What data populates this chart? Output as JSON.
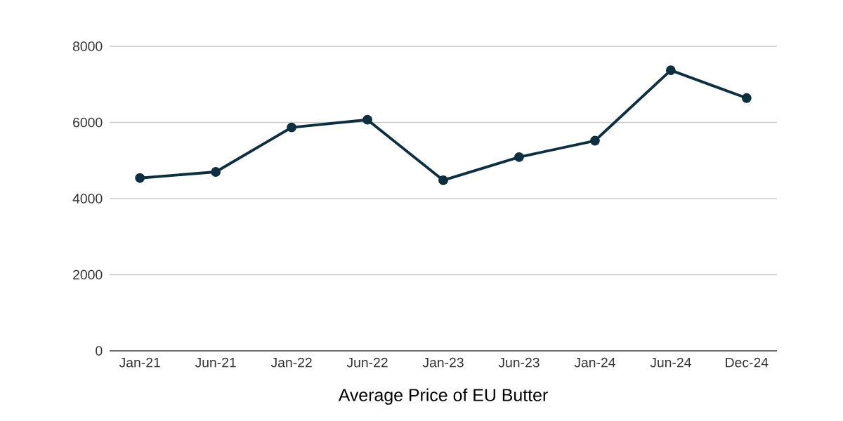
{
  "chart_data": {
    "type": "line",
    "xlabel": "Average Price of EU Butter",
    "categories": [
      "Jan-21",
      "Jun-21",
      "Jan-22",
      "Jun-22",
      "Jan-23",
      "Jun-23",
      "Jan-24",
      "Jun-24",
      "Dec-24"
    ],
    "series": [
      {
        "color": "#0d2f3f",
        "values": [
          4540,
          4700,
          5870,
          6070,
          4480,
          5090,
          5520,
          7370,
          6640
        ]
      }
    ],
    "ylim": [
      0,
      8000
    ],
    "yticks": [
      0,
      2000,
      4000,
      6000,
      8000
    ],
    "grid": "y",
    "marker": "circle",
    "line_style": "solid",
    "legend": false
  }
}
